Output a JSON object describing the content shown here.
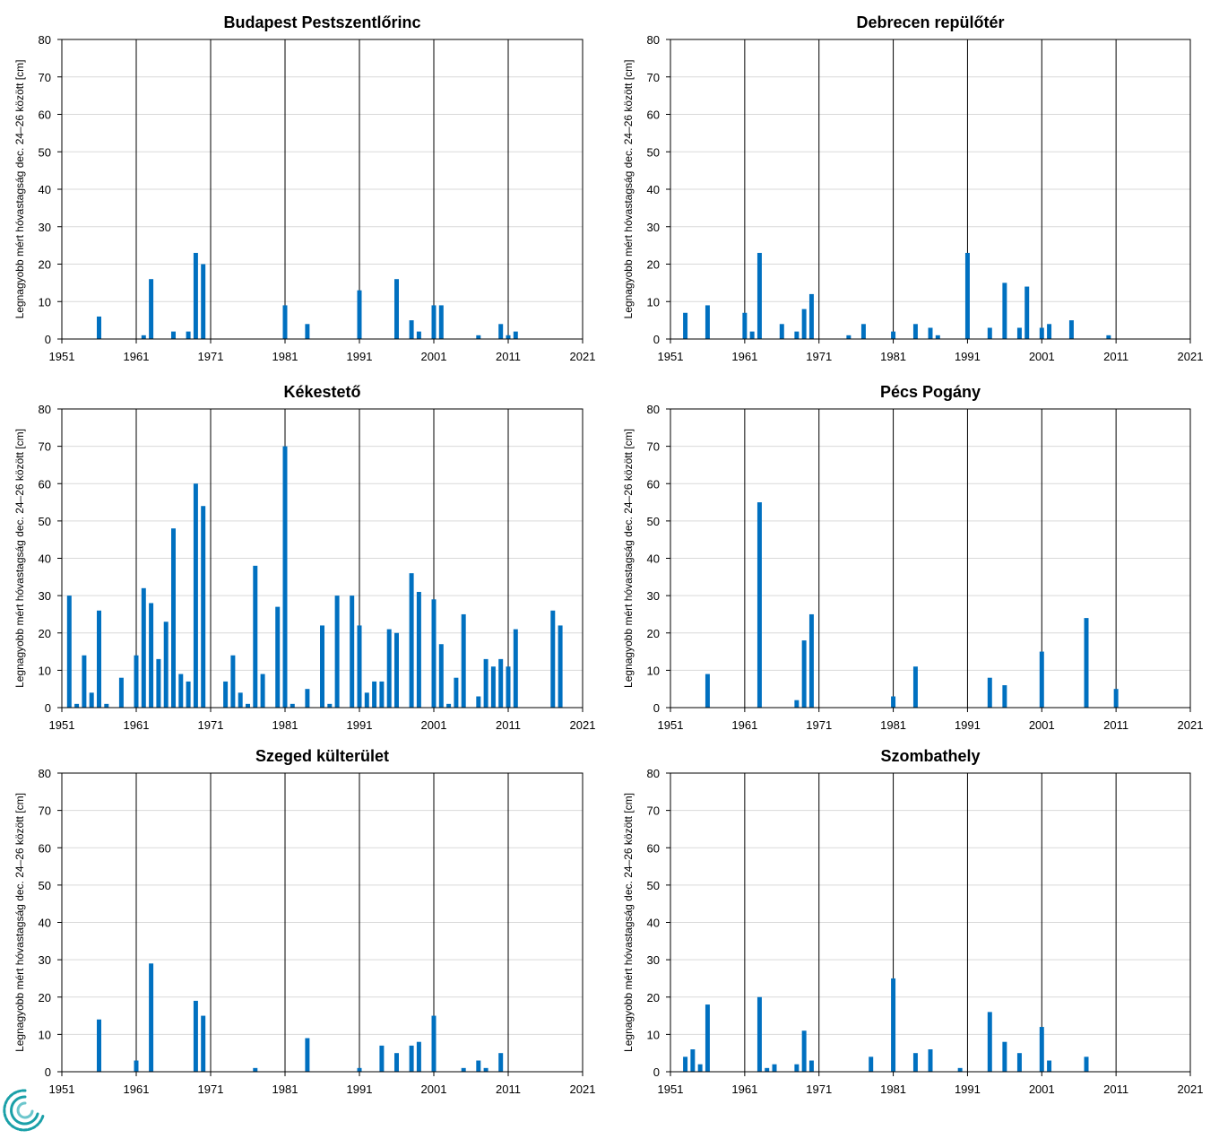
{
  "style": {
    "bar_color": "#0070C0",
    "grid_color": "#d9d9d9",
    "decade_line_color": "#000000"
  },
  "logo": {
    "icon": "met-service-swirl-logo",
    "colors": [
      "#1aa0a8",
      "#6cc6cc"
    ]
  },
  "chart_data": [
    {
      "type": "bar",
      "title": "Budapest Pestszentlőrinc",
      "ylabel": "Legnagyobb mért hóvastagság dec. 24–26 között [cm]",
      "xlabel": "",
      "xlim": [
        1951,
        2021
      ],
      "ylim": [
        0,
        80
      ],
      "x_ticks": [
        "1951",
        "1961",
        "1971",
        "1981",
        "1991",
        "2001",
        "2011",
        "2021"
      ],
      "y_ticks": [
        "0",
        "10",
        "20",
        "30",
        "40",
        "50",
        "60",
        "70",
        "80"
      ],
      "grid": true,
      "x": [
        1956,
        1962,
        1963,
        1966,
        1968,
        1969,
        1970,
        1981,
        1984,
        1991,
        1996,
        1998,
        1999,
        2001,
        2002,
        2007,
        2010,
        2011,
        2012
      ],
      "values": [
        6,
        1,
        16,
        2,
        2,
        23,
        20,
        9,
        4,
        13,
        16,
        5,
        2,
        9,
        9,
        1,
        4,
        1,
        2
      ]
    },
    {
      "type": "bar",
      "title": "Debrecen repülőtér",
      "ylabel": "Legnagyobb mért hóvastagság dec. 24–26 között [cm]",
      "xlabel": "",
      "xlim": [
        1951,
        2021
      ],
      "ylim": [
        0,
        80
      ],
      "x_ticks": [
        "1951",
        "1961",
        "1971",
        "1981",
        "1991",
        "2001",
        "2011",
        "2021"
      ],
      "y_ticks": [
        "0",
        "10",
        "20",
        "30",
        "40",
        "50",
        "60",
        "70",
        "80"
      ],
      "grid": true,
      "x": [
        1953,
        1956,
        1961,
        1962,
        1963,
        1966,
        1968,
        1969,
        1970,
        1975,
        1977,
        1981,
        1984,
        1986,
        1987,
        1991,
        1994,
        1996,
        1998,
        1999,
        2001,
        2002,
        2005,
        2010
      ],
      "values": [
        7,
        9,
        7,
        2,
        23,
        4,
        2,
        8,
        12,
        1,
        4,
        2,
        4,
        3,
        1,
        23,
        3,
        15,
        3,
        14,
        3,
        4,
        5,
        1
      ]
    },
    {
      "type": "bar",
      "title": "Kékestető",
      "ylabel": "Legnagyobb mért hóvastagság dec. 24–26 között [cm]",
      "xlabel": "",
      "xlim": [
        1951,
        2021
      ],
      "ylim": [
        0,
        80
      ],
      "x_ticks": [
        "1951",
        "1961",
        "1971",
        "1981",
        "1991",
        "2001",
        "2011",
        "2021"
      ],
      "y_ticks": [
        "0",
        "10",
        "20",
        "30",
        "40",
        "50",
        "60",
        "70",
        "80"
      ],
      "grid": true,
      "x": [
        1952,
        1953,
        1954,
        1955,
        1956,
        1957,
        1959,
        1961,
        1962,
        1963,
        1964,
        1965,
        1966,
        1967,
        1968,
        1969,
        1970,
        1973,
        1974,
        1975,
        1976,
        1977,
        1978,
        1980,
        1981,
        1982,
        1984,
        1986,
        1987,
        1988,
        1990,
        1991,
        1992,
        1993,
        1994,
        1995,
        1996,
        1998,
        1999,
        2001,
        2002,
        2003,
        2004,
        2005,
        2007,
        2008,
        2009,
        2010,
        2011,
        2012,
        2017,
        2018
      ],
      "values": [
        30,
        1,
        14,
        4,
        26,
        1,
        8,
        14,
        32,
        28,
        13,
        23,
        48,
        9,
        7,
        60,
        54,
        7,
        14,
        4,
        1,
        38,
        9,
        27,
        70,
        1,
        5,
        22,
        1,
        30,
        30,
        22,
        4,
        7,
        7,
        21,
        20,
        36,
        31,
        29,
        17,
        1,
        8,
        25,
        3,
        13,
        11,
        13,
        11,
        21,
        26,
        22
      ]
    },
    {
      "type": "bar",
      "title": "Pécs Pogány",
      "ylabel": "Legnagyobb mért hóvastagság dec. 24–26 között [cm]",
      "xlabel": "",
      "xlim": [
        1951,
        2021
      ],
      "ylim": [
        0,
        80
      ],
      "x_ticks": [
        "1951",
        "1961",
        "1971",
        "1981",
        "1991",
        "2001",
        "2011",
        "2021"
      ],
      "y_ticks": [
        "0",
        "10",
        "20",
        "30",
        "40",
        "50",
        "60",
        "70",
        "80"
      ],
      "grid": true,
      "x": [
        1956,
        1963,
        1968,
        1969,
        1970,
        1981,
        1984,
        1994,
        1996,
        2001,
        2007,
        2011
      ],
      "values": [
        9,
        55,
        2,
        18,
        25,
        3,
        11,
        8,
        6,
        15,
        24,
        5
      ]
    },
    {
      "type": "bar",
      "title": "Szeged külterület",
      "ylabel": "Legnagyobb mért hóvastagság dec. 24–26 között [cm]",
      "xlabel": "",
      "xlim": [
        1951,
        2021
      ],
      "ylim": [
        0,
        80
      ],
      "x_ticks": [
        "1951",
        "1961",
        "1971",
        "1981",
        "1991",
        "2001",
        "2011",
        "2021"
      ],
      "y_ticks": [
        "0",
        "10",
        "20",
        "30",
        "40",
        "50",
        "60",
        "70",
        "80"
      ],
      "grid": true,
      "x": [
        1956,
        1961,
        1963,
        1969,
        1970,
        1977,
        1984,
        1991,
        1994,
        1996,
        1998,
        1999,
        2001,
        2005,
        2007,
        2008,
        2010
      ],
      "values": [
        14,
        3,
        29,
        19,
        15,
        1,
        9,
        1,
        7,
        5,
        7,
        8,
        15,
        1,
        3,
        1,
        5
      ]
    },
    {
      "type": "bar",
      "title": "Szombathely",
      "ylabel": "Legnagyobb mért hóvastagság dec. 24–26 között [cm]",
      "xlabel": "",
      "xlim": [
        1951,
        2021
      ],
      "ylim": [
        0,
        80
      ],
      "x_ticks": [
        "1951",
        "1961",
        "1971",
        "1981",
        "1991",
        "2001",
        "2011",
        "2021"
      ],
      "y_ticks": [
        "0",
        "10",
        "20",
        "30",
        "40",
        "50",
        "60",
        "70",
        "80"
      ],
      "grid": true,
      "x": [
        1953,
        1954,
        1955,
        1956,
        1963,
        1964,
        1965,
        1968,
        1969,
        1970,
        1978,
        1981,
        1984,
        1986,
        1990,
        1994,
        1996,
        1998,
        2001,
        2002,
        2007
      ],
      "values": [
        4,
        6,
        2,
        18,
        20,
        1,
        2,
        2,
        11,
        3,
        4,
        25,
        5,
        6,
        1,
        16,
        8,
        5,
        12,
        3,
        4
      ]
    }
  ]
}
